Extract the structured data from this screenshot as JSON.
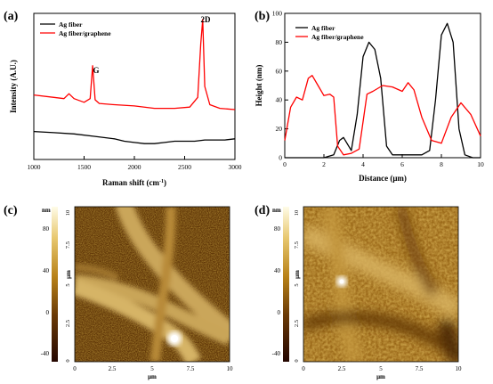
{
  "panel_a": {
    "label": "(a)",
    "xlabel": "Raman shift (cm",
    "xlabel_sup": "-1",
    "xlabel_tail": ")",
    "ylabel": "Intensity (A.U.)",
    "peak_g": "G",
    "peak_2d": "2D",
    "legend": [
      {
        "name": "Ag fiber",
        "color": "#000000"
      },
      {
        "name": "Ag fiber/graphene",
        "color": "#ff0000"
      }
    ]
  },
  "panel_b": {
    "label": "(b)",
    "xlabel": "Distance (μm)",
    "ylabel": "Height (nm)",
    "legend": [
      {
        "name": "Ag fiber",
        "color": "#000000"
      },
      {
        "name": "Ag fiber/graphene",
        "color": "#ff0000"
      }
    ]
  },
  "panel_c": {
    "label": "(c)",
    "colorbar_unit": "nm",
    "colorbar_ticks": [
      "80",
      "40",
      "0",
      "-40"
    ],
    "y_unit": "μm",
    "y_ticks": [
      "10",
      "7.5",
      "5",
      "2.5",
      "0"
    ],
    "x_ticks": [
      "0",
      "2.5",
      "5",
      "7.5",
      "10"
    ],
    "x_unit": "μm"
  },
  "panel_d": {
    "label": "(d)",
    "colorbar_unit": "nm",
    "colorbar_ticks": [
      "80",
      "40",
      "0",
      "-40"
    ],
    "y_unit": "μm",
    "y_ticks": [
      "10",
      "7.5",
      "5",
      "2.5",
      "0"
    ],
    "x_ticks": [
      "0",
      "2.5",
      "5",
      "7.5",
      "10"
    ],
    "x_unit": "μm"
  },
  "chart_data": [
    {
      "type": "line",
      "panel": "a",
      "xlim": [
        1000,
        3000
      ],
      "x_ticks": [
        1000,
        1500,
        2000,
        2500,
        3000
      ],
      "series": [
        {
          "name": "Ag fiber",
          "x": [
            1000,
            1200,
            1400,
            1600,
            1800,
            1900,
            2000,
            2100,
            2200,
            2300,
            2400,
            2500,
            2600,
            2700,
            2800,
            2900,
            3000
          ],
          "y": [
            0.08,
            0.07,
            0.06,
            0.04,
            0.02,
            0.0,
            -0.01,
            -0.02,
            -0.02,
            -0.01,
            0.0,
            0.0,
            0.0,
            0.01,
            0.01,
            0.01,
            0.02
          ]
        },
        {
          "name": "Ag fiber/graphene",
          "x": [
            1000,
            1200,
            1300,
            1350,
            1400,
            1500,
            1560,
            1585,
            1610,
            1650,
            1800,
            2000,
            2200,
            2400,
            2550,
            2630,
            2660,
            2680,
            2700,
            2750,
            2850,
            3000
          ],
          "y": [
            0.38,
            0.36,
            0.35,
            0.39,
            0.35,
            0.32,
            0.35,
            0.62,
            0.34,
            0.31,
            0.3,
            0.29,
            0.27,
            0.27,
            0.28,
            0.36,
            0.8,
            1.0,
            0.45,
            0.3,
            0.27,
            0.26
          ]
        }
      ]
    },
    {
      "type": "line",
      "panel": "b",
      "xlim": [
        0,
        10
      ],
      "ylim": [
        0,
        100
      ],
      "x_ticks": [
        0,
        2,
        4,
        6,
        8,
        10
      ],
      "y_ticks": [
        0,
        20,
        40,
        60,
        80,
        100
      ],
      "series": [
        {
          "name": "Ag fiber",
          "x": [
            0,
            0.5,
            1,
            1.5,
            2,
            2.5,
            2.8,
            3.0,
            3.4,
            3.7,
            4.0,
            4.3,
            4.6,
            4.9,
            5.2,
            5.5,
            6.0,
            6.5,
            7.0,
            7.4,
            7.7,
            8.0,
            8.3,
            8.6,
            8.9,
            9.2,
            9.6,
            10
          ],
          "y": [
            0,
            0,
            0,
            0,
            0,
            2,
            12,
            14,
            5,
            30,
            70,
            80,
            75,
            55,
            8,
            2,
            2,
            2,
            2,
            5,
            40,
            85,
            93,
            80,
            20,
            2,
            0,
            0
          ]
        },
        {
          "name": "Ag fiber/graphene",
          "x": [
            0,
            0.3,
            0.6,
            0.9,
            1.2,
            1.4,
            1.7,
            2.0,
            2.3,
            2.5,
            2.7,
            3.0,
            3.4,
            3.8,
            4.2,
            4.5,
            5.0,
            5.5,
            6.0,
            6.3,
            6.6,
            7.0,
            7.5,
            8.0,
            8.5,
            9.0,
            9.5,
            10
          ],
          "y": [
            12,
            35,
            42,
            40,
            55,
            57,
            50,
            43,
            44,
            42,
            8,
            2,
            3,
            6,
            44,
            46,
            50,
            49,
            46,
            52,
            47,
            28,
            12,
            10,
            28,
            38,
            30,
            15
          ]
        }
      ]
    }
  ]
}
